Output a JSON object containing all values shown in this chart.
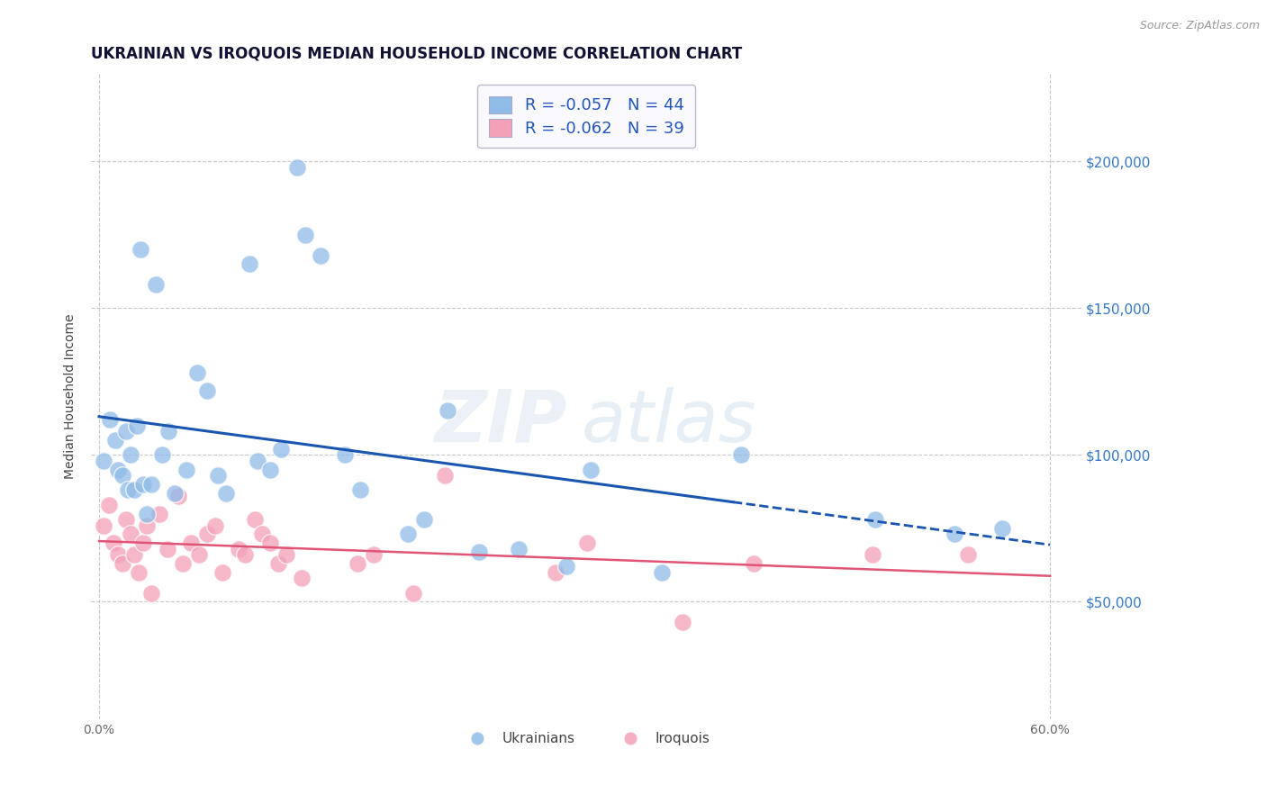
{
  "title": "UKRAINIAN VS IROQUOIS MEDIAN HOUSEHOLD INCOME CORRELATION CHART",
  "source": "Source: ZipAtlas.com",
  "ylabel": "Median Household Income",
  "watermark": "ZIPatlas",
  "xlim": [
    -0.005,
    0.62
  ],
  "ylim": [
    10000,
    230000
  ],
  "xtick_vals": [
    0.0,
    0.1,
    0.2,
    0.3,
    0.4,
    0.5,
    0.6
  ],
  "xtick_labels": [
    "0.0%",
    "",
    "",
    "",
    "",
    "",
    "60.0%"
  ],
  "ytick_vals": [
    50000,
    100000,
    150000,
    200000
  ],
  "ytick_labels": [
    "$50,000",
    "$100,000",
    "$150,000",
    "$200,000"
  ],
  "blue_line_color": "#1a56b0",
  "pink_line_color": "#e05575",
  "grid_color": "#c8c8c8",
  "background_color": "#ffffff",
  "ukrainians_color": "#90bce8",
  "iroquois_color": "#f4a0b8",
  "legend_text_color": "#2255bb",
  "legend_box_color": "#f0f0ff",
  "ukrainians_x": [
    0.003,
    0.007,
    0.01,
    0.012,
    0.015,
    0.017,
    0.018,
    0.02,
    0.022,
    0.024,
    0.026,
    0.028,
    0.03,
    0.033,
    0.036,
    0.04,
    0.044,
    0.048,
    0.055,
    0.062,
    0.068,
    0.075,
    0.08,
    0.095,
    0.1,
    0.108,
    0.115,
    0.125,
    0.13,
    0.14,
    0.155,
    0.165,
    0.195,
    0.205,
    0.22,
    0.24,
    0.265,
    0.295,
    0.31,
    0.355,
    0.405,
    0.49,
    0.54,
    0.57
  ],
  "ukrainians_y": [
    98000,
    112000,
    105000,
    95000,
    93000,
    108000,
    88000,
    100000,
    88000,
    110000,
    170000,
    90000,
    80000,
    90000,
    158000,
    100000,
    108000,
    87000,
    95000,
    128000,
    122000,
    93000,
    87000,
    165000,
    98000,
    95000,
    102000,
    198000,
    175000,
    168000,
    100000,
    88000,
    73000,
    78000,
    115000,
    67000,
    68000,
    62000,
    95000,
    60000,
    100000,
    78000,
    73000,
    75000
  ],
  "iroquois_x": [
    0.003,
    0.006,
    0.009,
    0.012,
    0.015,
    0.017,
    0.02,
    0.022,
    0.025,
    0.028,
    0.03,
    0.033,
    0.038,
    0.043,
    0.05,
    0.053,
    0.058,
    0.063,
    0.068,
    0.073,
    0.078,
    0.088,
    0.092,
    0.098,
    0.103,
    0.108,
    0.113,
    0.118,
    0.128,
    0.163,
    0.173,
    0.198,
    0.218,
    0.288,
    0.308,
    0.368,
    0.413,
    0.488,
    0.548
  ],
  "iroquois_y": [
    76000,
    83000,
    70000,
    66000,
    63000,
    78000,
    73000,
    66000,
    60000,
    70000,
    76000,
    53000,
    80000,
    68000,
    86000,
    63000,
    70000,
    66000,
    73000,
    76000,
    60000,
    68000,
    66000,
    78000,
    73000,
    70000,
    63000,
    66000,
    58000,
    63000,
    66000,
    53000,
    93000,
    60000,
    70000,
    43000,
    63000,
    66000,
    66000
  ],
  "title_fontsize": 12,
  "axis_label_fontsize": 10,
  "tick_fontsize": 10,
  "marker_size": 200,
  "source_fontsize": 9
}
